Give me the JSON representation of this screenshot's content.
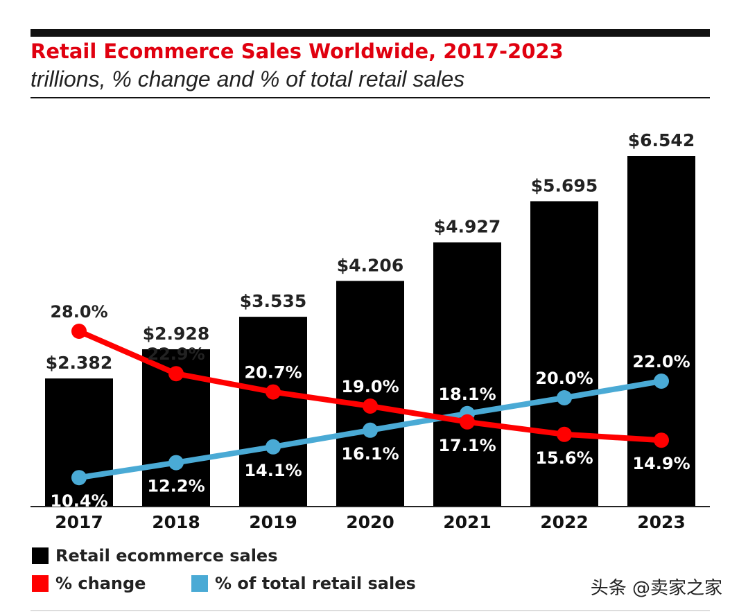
{
  "chart_data": {
    "type": "bar",
    "title": "Retail Ecommerce Sales Worldwide, 2017-2023",
    "subtitle": "trillions, % change and % of total retail sales",
    "categories": [
      "2017",
      "2018",
      "2019",
      "2020",
      "2021",
      "2022",
      "2023"
    ],
    "ylim": [
      0,
      7.5
    ],
    "secondary_ylim": [
      0,
      40
    ],
    "grid": false,
    "legend_position": "bottom",
    "series": [
      {
        "name": "Retail ecommerce sales",
        "type": "bar",
        "color": "#000000",
        "values": [
          2.382,
          2.928,
          3.535,
          4.206,
          4.927,
          5.695,
          6.542
        ],
        "labels": [
          "$2.382",
          "$2.928",
          "$3.535",
          "$4.206",
          "$4.927",
          "$5.695",
          "$6.542"
        ]
      },
      {
        "name": "% change",
        "type": "line",
        "color": "#ff0000",
        "values": [
          28.0,
          22.9,
          20.7,
          19.0,
          17.1,
          15.6,
          14.9
        ],
        "labels": [
          "28.0%",
          "22.9%",
          "20.7%",
          "19.0%",
          "17.1%",
          "15.6%",
          "14.9%"
        ]
      },
      {
        "name": "% of total retail sales",
        "type": "line",
        "color": "#4aaad5",
        "values": [
          10.4,
          12.2,
          14.1,
          16.1,
          18.1,
          20.0,
          22.0
        ],
        "labels": [
          "10.4%",
          "12.2%",
          "14.1%",
          "16.1%",
          "18.1%",
          "20.0%",
          "22.0%"
        ]
      }
    ]
  },
  "watermark": "头条 @卖家之家"
}
